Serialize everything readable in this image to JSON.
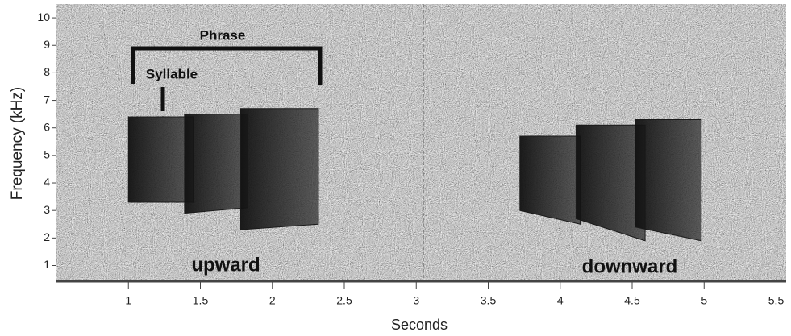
{
  "chart_data": {
    "type": "spectrogram",
    "xlabel": "Seconds",
    "ylabel": "Frequency (kHz)",
    "xlim": [
      0.5,
      5.57
    ],
    "ylim": [
      0.4,
      10.5
    ],
    "xticks": [
      1,
      1.5,
      2,
      2.5,
      3,
      3.5,
      4,
      4.5,
      5,
      5.5
    ],
    "yticks": [
      1,
      2,
      3,
      4,
      5,
      6,
      7,
      8,
      9,
      10
    ],
    "annotations": {
      "phrase": "Phrase",
      "syllable": "Syllable",
      "upward": "upward",
      "downward": "downward"
    },
    "color": "#1a1a1a",
    "syllables": [
      {
        "start": 1.0,
        "end": 1.45,
        "low_start": 3.3,
        "low_end": 3.3,
        "high": 6.4
      },
      {
        "start": 1.39,
        "end": 1.83,
        "low_start": 2.9,
        "low_end": 3.1,
        "high": 6.5
      },
      {
        "start": 1.78,
        "end": 2.32,
        "low_start": 2.3,
        "low_end": 2.5,
        "high": 6.7
      },
      {
        "start": 3.72,
        "end": 4.14,
        "low_start": 3.0,
        "low_end": 2.5,
        "high": 5.7
      },
      {
        "start": 4.11,
        "end": 4.59,
        "low_start": 2.7,
        "low_end": 1.9,
        "high": 6.1
      },
      {
        "start": 4.52,
        "end": 4.98,
        "low_start": 2.4,
        "low_end": 1.9,
        "high": 6.3
      }
    ]
  }
}
